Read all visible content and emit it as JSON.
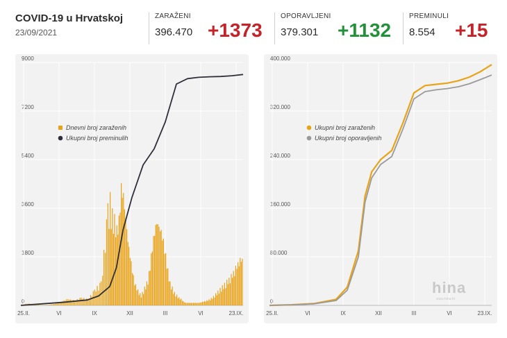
{
  "header": {
    "title": "COVID-19 u Hrvatskoj",
    "date": "23/09/2021",
    "stats": [
      {
        "label": "ZARAŽENI",
        "value": "396.470",
        "delta": "+1373",
        "color": "#c32329"
      },
      {
        "label": "OPORAVLJENI",
        "value": "379.301",
        "delta": "+1132",
        "color": "#23913a"
      },
      {
        "label": "PREMINULI",
        "value": "8.554",
        "delta": "+15",
        "color": "#c32329"
      }
    ]
  },
  "watermark": {
    "text": "hina",
    "sub": "www.hina.hr"
  },
  "colors": {
    "orange": "#e8a317",
    "dark": "#2f2f3a",
    "gray": "#9a9a9a",
    "grid": "#ffffff"
  },
  "chart_data": [
    {
      "type": "bar",
      "xlabel": "",
      "ylabel": "",
      "x_ticks": [
        "25.II.",
        "VI",
        "IX",
        "XII",
        "III",
        "VI",
        "23.IX."
      ],
      "y_ticks": [
        "0",
        "1800",
        "3600",
        "5400",
        "7200",
        "9000"
      ],
      "ylim": [
        0,
        9000
      ],
      "grid": true,
      "legend": "top-left",
      "series": [
        {
          "name": "Dnevni broj zaraženih",
          "type": "bar",
          "x": [
            0.0,
            0.03,
            0.06,
            0.09,
            0.12,
            0.15,
            0.18,
            0.21,
            0.24,
            0.27,
            0.3,
            0.33,
            0.36,
            0.39,
            0.4,
            0.41,
            0.42,
            0.43,
            0.44,
            0.45,
            0.46,
            0.47,
            0.48,
            0.49,
            0.5,
            0.51,
            0.52,
            0.53,
            0.54,
            0.55,
            0.56,
            0.57,
            0.58,
            0.59,
            0.6,
            0.61,
            0.62,
            0.63,
            0.64,
            0.65,
            0.66,
            0.67,
            0.68,
            0.69,
            0.7,
            0.71,
            0.72,
            0.73,
            0.74,
            0.75,
            0.76,
            0.78,
            0.8,
            0.82,
            0.84,
            0.86,
            0.88,
            0.9,
            0.92,
            0.94,
            0.96,
            0.98,
            1.0
          ],
          "values": [
            20,
            80,
            40,
            10,
            20,
            60,
            150,
            250,
            200,
            300,
            250,
            600,
            900,
            3800,
            4200,
            3600,
            3400,
            3000,
            3400,
            4700,
            4400,
            3500,
            2600,
            2000,
            1400,
            900,
            700,
            500,
            400,
            600,
            800,
            1000,
            1600,
            2400,
            3000,
            3400,
            3200,
            3000,
            2600,
            2000,
            1400,
            900,
            700,
            500,
            400,
            300,
            250,
            150,
            100,
            100,
            100,
            100,
            100,
            150,
            200,
            300,
            500,
            700,
            900,
            1100,
            1400,
            1800,
            1900
          ]
        },
        {
          "name": "Ukupni broj preminulih",
          "type": "line",
          "x": [
            0.0,
            0.1,
            0.2,
            0.3,
            0.35,
            0.4,
            0.43,
            0.46,
            0.5,
            0.55,
            0.6,
            0.65,
            0.7,
            0.75,
            0.8,
            0.85,
            0.9,
            0.95,
            1.0
          ],
          "values": [
            0,
            60,
            120,
            200,
            350,
            700,
            1400,
            2800,
            4000,
            5200,
            5800,
            6800,
            8200,
            8400,
            8450,
            8470,
            8480,
            8510,
            8554
          ]
        }
      ]
    },
    {
      "type": "line",
      "xlabel": "",
      "ylabel": "",
      "x_ticks": [
        "25.II.",
        "VI",
        "IX",
        "XII",
        "III",
        "VI",
        "23.IX."
      ],
      "y_ticks": [
        "0",
        "80.000",
        "160.000",
        "240.000",
        "320.000",
        "400.000"
      ],
      "ylim": [
        0,
        400000
      ],
      "grid": true,
      "legend": "top-left",
      "series": [
        {
          "name": "Ukupni broj zaraženih",
          "x": [
            0.0,
            0.1,
            0.2,
            0.3,
            0.35,
            0.4,
            0.43,
            0.46,
            0.5,
            0.55,
            0.6,
            0.65,
            0.7,
            0.75,
            0.8,
            0.85,
            0.9,
            0.95,
            1.0
          ],
          "values": [
            0,
            1000,
            3000,
            10000,
            30000,
            90000,
            180000,
            220000,
            240000,
            255000,
            300000,
            350000,
            362000,
            364000,
            366000,
            370000,
            376000,
            385000,
            396470
          ]
        },
        {
          "name": "Ukupni broj oporavljenih",
          "x": [
            0.0,
            0.1,
            0.2,
            0.3,
            0.35,
            0.4,
            0.43,
            0.46,
            0.5,
            0.55,
            0.6,
            0.65,
            0.7,
            0.75,
            0.8,
            0.85,
            0.9,
            0.95,
            1.0
          ],
          "values": [
            0,
            800,
            2500,
            8000,
            25000,
            80000,
            170000,
            210000,
            232000,
            245000,
            290000,
            340000,
            352000,
            355000,
            357000,
            360000,
            365000,
            372000,
            379301
          ]
        }
      ]
    }
  ]
}
